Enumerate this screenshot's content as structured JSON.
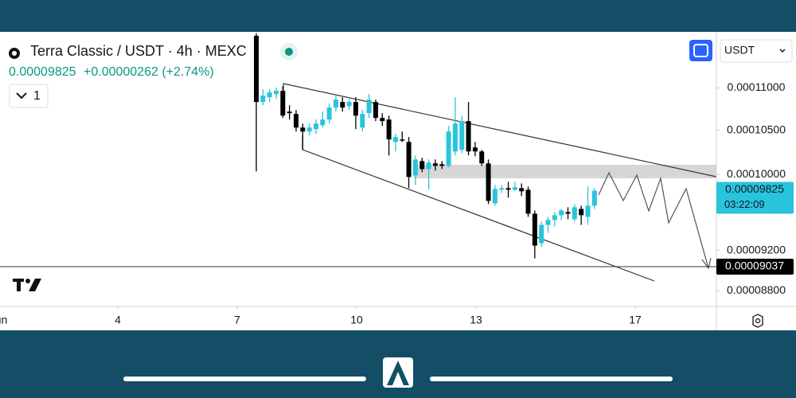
{
  "header": {
    "title": "Terra Classic / USDT · 4h · MEXC",
    "price": "0.00009825",
    "change": "+0.00000262 (+2.74%)",
    "interval_count": "1",
    "currency": "USDT"
  },
  "chart_data": {
    "type": "candlestick",
    "log_scale": true,
    "bull_color": "#29c4dc",
    "bear_color": "#000000",
    "ylim": [
      8.65e-05,
      0.000117
    ],
    "yticks": [
      {
        "value": 0.00011,
        "label": "0.00011000"
      },
      {
        "value": 0.000105,
        "label": "0.00010500"
      },
      {
        "value": 0.0001,
        "label": "0.00010000"
      },
      {
        "value": 9.2e-05,
        "label": "0.00009200"
      },
      {
        "value": 8.8e-05,
        "label": "0.00008800"
      }
    ],
    "xlim": [
      1.04,
      19.04
    ],
    "xticks": [
      {
        "value": 1,
        "label": "Jun"
      },
      4,
      7,
      10,
      13,
      17
    ],
    "open": [
      0.00011649,
      0.00010831,
      0.00010888,
      0.00010926,
      0.00010965,
      0.00010717,
      0.0001069,
      0.00010531,
      0.00010485,
      0.00010513,
      0.00010559,
      0.00010624,
      0.00010765,
      0.00010831,
      0.00010783,
      0.00010831,
      0.00010531,
      0.00010699,
      0.00010831,
      0.00010643,
      0.00010624,
      0.00010366,
      0.00010394,
      0.00010366,
      9.991e-05,
      0.0001015,
      0.00010061,
      0.00010124,
      0.00010115,
      0.00010097,
      0.00010258,
      0.00010276,
      0.00010606,
      0.00010303,
      0.00010258,
      0.00010124,
      9.689e-05,
      9.835e-05,
      9.852e-05,
      9.835e-05,
      9.852e-05,
      9.835e-05,
      9.579e-05,
      9.274e-05,
      9.462e-05,
      9.513e-05,
      9.563e-05,
      9.596e-05,
      9.521e-05,
      9.63e-05,
      9.546e-05,
      9.664e-05
    ],
    "high": [
      0.00011681,
      0.00010984,
      0.00010984,
      0.00011004,
      0.00011023,
      0.00010793,
      0.00010737,
      0.00010577,
      0.00010577,
      0.00010624,
      0.00010717,
      0.00010811,
      0.00010906,
      0.00010888,
      0.00010869,
      0.00010888,
      0.00010737,
      0.00010926,
      0.0001086,
      0.00010699,
      0.0001067,
      0.00010457,
      0.00010485,
      0.00010421,
      0.00010213,
      0.00010186,
      0.00010168,
      0.00010168,
      0.0001015,
      0.0001055,
      0.00010888,
      0.0001067,
      0.00010831,
      0.00010366,
      0.00010276,
      0.00010168,
      9.887e-05,
      9.887e-05,
      9.921e-05,
      9.921e-05,
      9.904e-05,
      9.869e-05,
      9.613e-05,
      9.496e-05,
      9.546e-05,
      9.596e-05,
      9.63e-05,
      9.647e-05,
      9.681e-05,
      9.664e-05,
      9.869e-05,
      9.852e-05
    ],
    "low": [
      0.00010035,
      0.00010793,
      0.00010831,
      0.00010869,
      0.00010643,
      0.00010624,
      0.00010485,
      0.00010276,
      0.00010439,
      0.00010457,
      0.00010531,
      0.00010577,
      0.00010717,
      0.00010717,
      0.00010737,
      0.00010513,
      0.00010485,
      0.00010643,
      0.00010606,
      0.0001055,
      0.00010213,
      0.00010258,
      0.00010366,
      9.852e-05,
      9.887e-05,
      0.00010026,
      9.835e-05,
      0.00010044,
      0.00010061,
      0.00010079,
      0.00010213,
      0.0001024,
      0.00010213,
      0.00010204,
      0.00010097,
      9.681e-05,
      9.664e-05,
      9.8e-05,
      9.749e-05,
      9.818e-05,
      9.766e-05,
      9.546e-05,
      9.12e-05,
      9.234e-05,
      9.38e-05,
      9.446e-05,
      9.513e-05,
      9.521e-05,
      9.496e-05,
      9.462e-05,
      9.462e-05,
      9.63e-05
    ],
    "close": [
      0.00010831,
      0.00010906,
      0.00010946,
      0.00010965,
      0.0001067,
      0.00010699,
      0.00010531,
      0.00010485,
      0.00010531,
      0.00010577,
      0.00010624,
      0.00010765,
      0.0001086,
      0.00010765,
      0.00010831,
      0.0001067,
      0.0001069,
      0.0001086,
      0.00010643,
      0.00010606,
      0.00010394,
      0.00010421,
      0.00010385,
      9.974e-05,
      0.00010168,
      0.00010061,
      0.00010133,
      0.00010097,
      0.00010097,
      0.00010485,
      0.00010577,
      0.00010606,
      0.00010258,
      0.00010258,
      0.00010124,
      9.715e-05,
      9.843e-05,
      9.852e-05,
      9.835e-05,
      9.861e-05,
      9.818e-05,
      9.579e-05,
      9.249e-05,
      9.462e-05,
      9.513e-05,
      9.563e-05,
      9.613e-05,
      9.579e-05,
      9.647e-05,
      9.563e-05,
      9.664e-05,
      9.825e-05
    ],
    "price_tags": [
      {
        "value": 9.825e-05,
        "label": "0.00009825",
        "timer": "03:22:09",
        "color": "#29c4dc"
      },
      {
        "value": 9.037e-05,
        "label": "0.00009037",
        "color": "#000000"
      }
    ]
  }
}
